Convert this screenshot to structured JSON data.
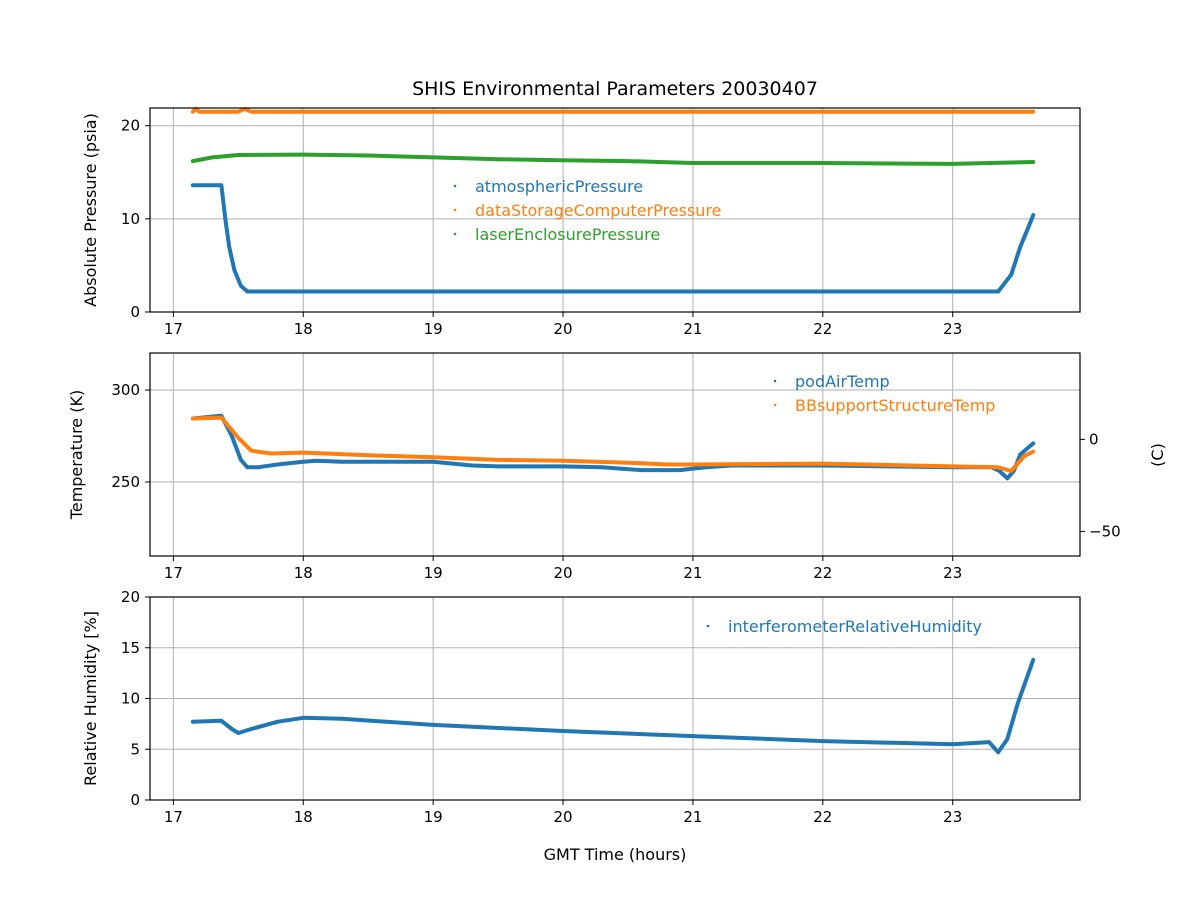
{
  "chart_data": [
    {
      "type": "scatter",
      "title": "SHIS Environmental Parameters 20030407",
      "xlabel": "",
      "ylabel": "Absolute Pressure (psia)",
      "xlim": [
        16.82,
        23.98
      ],
      "ylim": [
        0,
        21.9
      ],
      "xticks": [
        "17",
        "18",
        "19",
        "20",
        "21",
        "22",
        "23"
      ],
      "yticks": [
        "0",
        "10",
        "20"
      ],
      "grid": true,
      "legend_position": "center",
      "series": [
        {
          "name": "atmosphericPressure",
          "color": "#1f77b4",
          "x": [
            17.15,
            17.37,
            17.4,
            17.43,
            17.47,
            17.52,
            17.57,
            18,
            20,
            22,
            23.35,
            23.45,
            23.52,
            23.58,
            23.62
          ],
          "y": [
            13.6,
            13.6,
            10,
            7,
            4.5,
            2.8,
            2.2,
            2.2,
            2.2,
            2.2,
            2.2,
            4,
            7,
            9,
            10.4
          ]
        },
        {
          "name": "dataStorageComputerPressure",
          "color": "#ff7f0e",
          "x": [
            17.15,
            17.17,
            17.2,
            17.5,
            17.55,
            17.6,
            18,
            20,
            22,
            23.62
          ],
          "y": [
            21.5,
            21.8,
            21.5,
            21.5,
            21.8,
            21.5,
            21.5,
            21.5,
            21.5,
            21.5
          ]
        },
        {
          "name": "laserEnclosurePressure",
          "color": "#2ca02c",
          "x": [
            17.15,
            17.3,
            17.5,
            18,
            18.5,
            19,
            19.5,
            20,
            20.5,
            21,
            22,
            23,
            23.62
          ],
          "y": [
            16.2,
            16.6,
            16.85,
            16.9,
            16.8,
            16.6,
            16.4,
            16.3,
            16.2,
            16.0,
            16.0,
            15.9,
            16.1
          ]
        }
      ]
    },
    {
      "type": "scatter",
      "title": "",
      "ylabel": "Temperature (K)",
      "y2label": "(C)",
      "xlim": [
        16.82,
        23.98
      ],
      "ylim": [
        209.8,
        320.1
      ],
      "xticks": [
        "17",
        "18",
        "19",
        "20",
        "21",
        "22",
        "23"
      ],
      "yticks": [
        "250",
        "300"
      ],
      "y2ticks": [
        "−50",
        "0"
      ],
      "grid": true,
      "legend_position": "upper right",
      "series": [
        {
          "name": "podAirTemp",
          "color": "#1f77b4",
          "x": [
            17.15,
            17.37,
            17.45,
            17.52,
            17.57,
            17.65,
            17.8,
            18.0,
            18.1,
            18.3,
            18.5,
            19,
            19.3,
            19.5,
            20,
            20.3,
            20.6,
            20.9,
            21.1,
            21.3,
            22,
            22.5,
            23,
            23.3,
            23.36,
            23.42,
            23.47,
            23.52,
            23.62
          ],
          "y": [
            284.5,
            286,
            275,
            262,
            258,
            258,
            259.5,
            261,
            261.5,
            261,
            261,
            261,
            259,
            258.5,
            258.5,
            258,
            256.5,
            256.5,
            258,
            259,
            259,
            258.5,
            258,
            258,
            256,
            252,
            256,
            265,
            271
          ]
        },
        {
          "name": "BBsupportStructureTemp",
          "color": "#ff7f0e",
          "x": [
            17.15,
            17.37,
            17.5,
            17.6,
            17.75,
            18,
            18.5,
            19,
            19.5,
            20,
            20.5,
            20.8,
            21,
            22,
            23,
            23.35,
            23.45,
            23.55,
            23.62
          ],
          "y": [
            284.5,
            285,
            274,
            267,
            265.5,
            266,
            264.5,
            263.5,
            262,
            261.5,
            260.5,
            259.5,
            259.5,
            260,
            258.5,
            258,
            256,
            264,
            266.5
          ]
        }
      ]
    },
    {
      "type": "scatter",
      "title": "",
      "xlabel": "GMT Time (hours)",
      "ylabel": "Relative Humidity [%]",
      "xlim": [
        16.82,
        23.98
      ],
      "ylim": [
        0,
        20
      ],
      "xticks": [
        "17",
        "18",
        "19",
        "20",
        "21",
        "22",
        "23"
      ],
      "yticks": [
        "0",
        "5",
        "10",
        "15",
        "20"
      ],
      "grid": true,
      "legend_position": "upper right",
      "series": [
        {
          "name": "interferometerRelativeHumidity",
          "color": "#1f77b4",
          "x": [
            17.15,
            17.37,
            17.45,
            17.5,
            17.6,
            17.8,
            18,
            18.3,
            19,
            20,
            21,
            22,
            23,
            23.28,
            23.35,
            23.42,
            23.5,
            23.62
          ],
          "y": [
            7.7,
            7.8,
            7,
            6.6,
            7,
            7.7,
            8.1,
            8,
            7.4,
            6.8,
            6.3,
            5.8,
            5.5,
            5.7,
            4.7,
            6,
            9.5,
            13.8
          ]
        }
      ]
    }
  ]
}
